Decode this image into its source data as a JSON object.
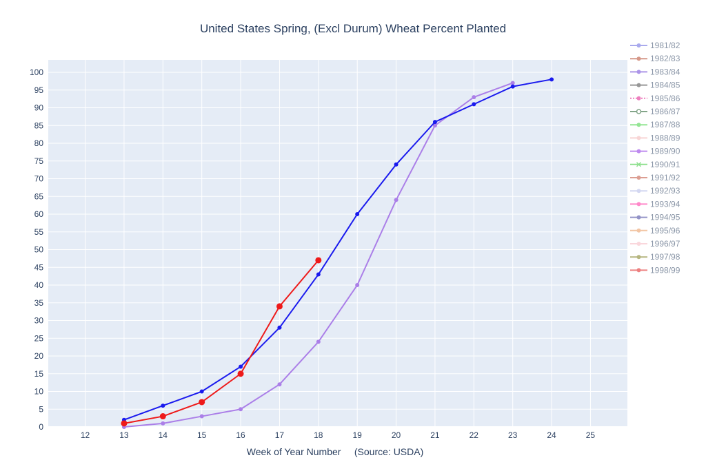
{
  "chart_data": {
    "type": "line",
    "title": "United States Spring, (Excl Durum) Wheat Percent Planted",
    "xlabel": "Week of Year Number     (Source: USDA)",
    "ylabel": "",
    "xlim": [
      11.05,
      25.95
    ],
    "ylim": [
      0,
      103.5
    ],
    "x_ticks": [
      12,
      13,
      14,
      15,
      16,
      17,
      18,
      19,
      20,
      21,
      22,
      23,
      24,
      25
    ],
    "y_ticks": [
      0,
      5,
      10,
      15,
      20,
      25,
      30,
      35,
      40,
      45,
      50,
      55,
      60,
      65,
      70,
      75,
      80,
      85,
      90,
      95,
      100
    ],
    "grid": true,
    "legend_position": "right",
    "plotted_series": [
      {
        "name": "purple",
        "color": "#ab7fe8",
        "x": [
          13,
          14,
          15,
          16,
          17,
          18,
          19,
          20,
          21,
          22,
          23
        ],
        "y": [
          0,
          1,
          3,
          5,
          12,
          24,
          40,
          64,
          85,
          93,
          97
        ]
      },
      {
        "name": "blue",
        "color": "#1a1aee",
        "x": [
          13,
          14,
          15,
          16,
          17,
          18,
          19,
          20,
          21,
          22,
          23,
          24
        ],
        "y": [
          2,
          6,
          10,
          17,
          28,
          43,
          60,
          74,
          86,
          91,
          96,
          98
        ]
      },
      {
        "name": "red",
        "color": "#ee1a1a",
        "x": [
          13,
          14,
          15,
          16,
          17,
          18
        ],
        "y": [
          1,
          3,
          7,
          15,
          34,
          47
        ]
      }
    ],
    "legend": [
      {
        "label": "1981/82",
        "color": "#6366e0",
        "marker": "dot"
      },
      {
        "label": "1982/83",
        "color": "#b5442a",
        "marker": "dot"
      },
      {
        "label": "1983/84",
        "color": "#6a3fd6",
        "marker": "dot"
      },
      {
        "label": "1984/85",
        "color": "#444444",
        "marker": "dot"
      },
      {
        "label": "1985/86",
        "color": "#e01a8a",
        "marker": "dot",
        "dotted": true
      },
      {
        "label": "1986/87",
        "color": "#1f5c2a",
        "marker": "open"
      },
      {
        "label": "1987/88",
        "color": "#3ed13e",
        "marker": "dot"
      },
      {
        "label": "1988/89",
        "color": "#f4b4b4",
        "marker": "dot"
      },
      {
        "label": "1989/90",
        "color": "#8a2be2",
        "marker": "dot"
      },
      {
        "label": "1990/91",
        "color": "#34c734",
        "marker": "cross"
      },
      {
        "label": "1991/92",
        "color": "#c0503a",
        "marker": "dot"
      },
      {
        "label": "1992/93",
        "color": "#b0b8e6",
        "marker": "dot"
      },
      {
        "label": "1993/94",
        "color": "#ff2aa0",
        "marker": "dot"
      },
      {
        "label": "1994/95",
        "color": "#3c3c9a",
        "marker": "dot"
      },
      {
        "label": "1995/96",
        "color": "#e8965a",
        "marker": "dot"
      },
      {
        "label": "1996/97",
        "color": "#f7b8c0",
        "marker": "dot"
      },
      {
        "label": "1997/98",
        "color": "#7c7c1a",
        "marker": "dot"
      },
      {
        "label": "1998/99",
        "color": "#e01a1a",
        "marker": "dot"
      }
    ]
  }
}
